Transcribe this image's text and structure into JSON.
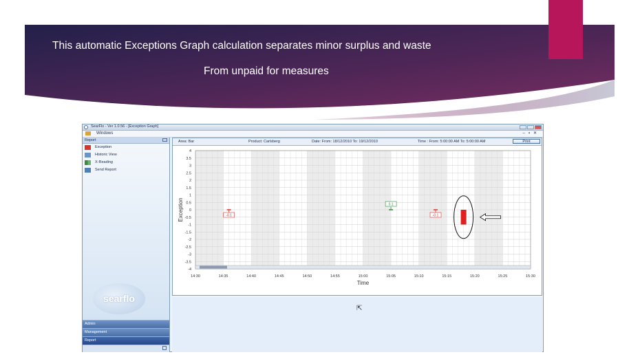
{
  "slide": {
    "heading_line1": "This automatic Exceptions Graph calculation separates minor surplus and waste",
    "heading_line2": "From unpaid for measures",
    "colors": {
      "banner_dark": "#2a2150",
      "banner_mid": "#6a2a5a",
      "accent": "#b8165a"
    }
  },
  "app": {
    "window_title": "SearFlo - Ver 1.0.56 - [Exception Graph]",
    "menu_label": "Windows",
    "sidebar": {
      "section_title": "Report",
      "items": [
        {
          "label": "Exception",
          "icon": "exception-icon"
        },
        {
          "label": "Historic View",
          "icon": "historic-view-icon"
        },
        {
          "label": "X-Reading",
          "icon": "x-reading-icon"
        },
        {
          "label": "Send Report",
          "icon": "send-report-icon"
        }
      ],
      "logo_text": "searflo",
      "bottom_tabs": [
        "Admin",
        "Management",
        "Report"
      ]
    },
    "info_bar": {
      "area": "Area: Bar",
      "product": "Product: Carlsberg",
      "date": "Date: From: 18/12/2010 To: 19/12/2010",
      "time": "Time : From: 5:00:00 AM To: 5:00:00 AM",
      "print_label": "Print"
    }
  },
  "chart_data": {
    "type": "scatter",
    "xlabel": "Time",
    "ylabel": "Exception",
    "x_ticks": [
      "14:30",
      "14:35",
      "14:40",
      "14:45",
      "14:50",
      "14:55",
      "15:00",
      "15:05",
      "15:10",
      "15:15",
      "15:20",
      "15:25",
      "15:30"
    ],
    "y_ticks": [
      "4",
      "3.5",
      "3",
      "2.5",
      "2",
      "1.5",
      "1",
      "0.5",
      "0",
      "-0.5",
      "-1",
      "-1.5",
      "-2",
      "-2.5",
      "-3",
      "-3.5",
      "-4"
    ],
    "ylim": [
      -4,
      4
    ],
    "grid": true,
    "markers": [
      {
        "x": "14:36",
        "y": -0.1,
        "label": "-0.1",
        "color": "#d9342b"
      },
      {
        "x": "15:05",
        "y": 0.1,
        "label": "0.1",
        "color": "#2f8a3a"
      },
      {
        "x": "15:13",
        "y": -0.1,
        "label": "-0.1",
        "color": "#d9342b"
      }
    ],
    "highlight": {
      "x": "15:18",
      "y_top": 0,
      "y_bottom": -1,
      "color": "#e02020"
    }
  }
}
